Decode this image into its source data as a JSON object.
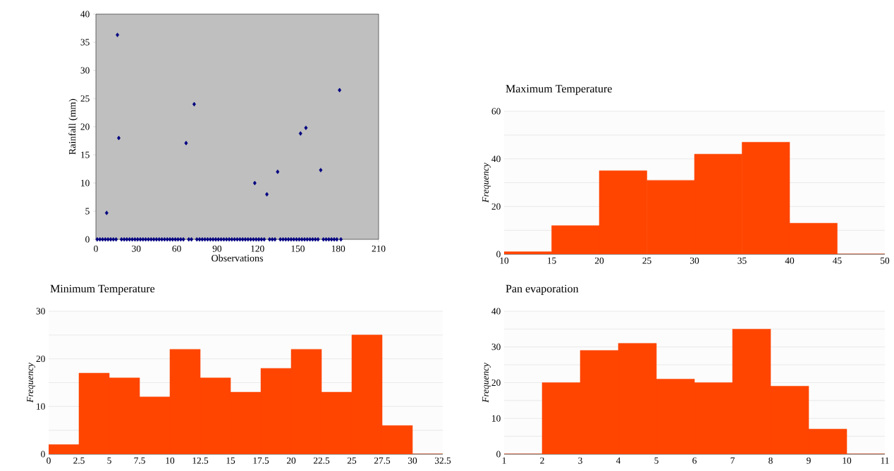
{
  "chart_data": [
    {
      "type": "scatter",
      "xlabel": "Observations",
      "ylabel": "Rainfall (mm)",
      "marker": "diamond",
      "color": "#000080",
      "x": [
        1,
        3,
        5,
        7,
        8,
        9,
        11,
        13,
        15,
        16,
        17,
        19,
        21,
        23,
        25,
        27,
        29,
        31,
        33,
        35,
        37,
        39,
        41,
        43,
        45,
        47,
        49,
        51,
        53,
        55,
        57,
        59,
        61,
        63,
        65,
        67,
        69,
        71,
        73,
        75,
        77,
        79,
        81,
        83,
        85,
        87,
        89,
        91,
        93,
        95,
        97,
        99,
        101,
        103,
        105,
        107,
        109,
        111,
        113,
        115,
        117,
        118,
        119,
        121,
        123,
        125,
        127,
        129,
        131,
        133,
        135,
        137,
        139,
        141,
        143,
        145,
        147,
        149,
        151,
        152,
        153,
        155,
        156,
        157,
        159,
        161,
        163,
        165,
        167,
        169,
        171,
        173,
        175,
        177,
        179,
        181,
        182
      ],
      "values": [
        0,
        0,
        0,
        0,
        4.7,
        0,
        0,
        0,
        0,
        36.3,
        18,
        0,
        0,
        0,
        0,
        0,
        0,
        0,
        0,
        0,
        0,
        0,
        0,
        0,
        0,
        0,
        0,
        0,
        0,
        0,
        0,
        0,
        0,
        0,
        0,
        17.1,
        0,
        0,
        24,
        0,
        0,
        0,
        0,
        0,
        0,
        0,
        0,
        0,
        0,
        0,
        0,
        0,
        0,
        0,
        0,
        0,
        0,
        0,
        0,
        0,
        0,
        10,
        0,
        0,
        0,
        0,
        8,
        0,
        0,
        0,
        12,
        0,
        0,
        0,
        0,
        0,
        0,
        0,
        0,
        18.8,
        0,
        0,
        19.8,
        0,
        0,
        0,
        0,
        0,
        12.3,
        0,
        0,
        0,
        0,
        0,
        0,
        26.5,
        0
      ],
      "xlim": [
        0,
        210
      ],
      "ylim": [
        0,
        40
      ],
      "xticks": [
        0,
        30,
        60,
        90,
        120,
        150,
        180,
        210
      ],
      "yticks": [
        0,
        5,
        10,
        15,
        20,
        25,
        30,
        35,
        40
      ]
    },
    {
      "type": "histogram",
      "title": "Maximum Temperature",
      "ylabel": "Frequency",
      "color": "#ff4500",
      "grid": "y",
      "bins": [
        10,
        15,
        20,
        25,
        30,
        35,
        40,
        45,
        50
      ],
      "values": [
        1,
        12,
        35,
        31,
        42,
        47,
        13,
        0
      ],
      "xlim": [
        10,
        50
      ],
      "ylim": [
        0,
        60
      ],
      "xticks": [
        10,
        15,
        20,
        25,
        30,
        35,
        40,
        45,
        50
      ],
      "yticks": [
        0,
        {
          "value": 10,
          "label": null
        },
        20,
        {
          "value": 30,
          "label": null
        },
        40,
        {
          "value": 50,
          "label": null
        },
        60
      ]
    },
    {
      "type": "histogram",
      "title": "Minimum Temperature",
      "ylabel": "Frequency",
      "color": "#ff4500",
      "grid": "y",
      "bins": [
        0,
        2.5,
        5,
        7.5,
        10,
        12.5,
        15,
        17.5,
        20,
        22.5,
        25,
        27.5,
        30,
        32.5
      ],
      "values": [
        2,
        17,
        16,
        12,
        22,
        16,
        13,
        18,
        22,
        13,
        25,
        6,
        0
      ],
      "xlim": [
        0,
        32.5
      ],
      "ylim": [
        0,
        30
      ],
      "xticks": [
        0,
        2.5,
        5,
        7.5,
        10,
        12.5,
        15,
        17.5,
        20,
        22.5,
        25,
        27.5,
        30,
        32.5
      ],
      "yticks": [
        0,
        {
          "value": 5,
          "label": null
        },
        10,
        {
          "value": 15,
          "label": null
        },
        20,
        {
          "value": 25,
          "label": null
        },
        30
      ]
    },
    {
      "type": "histogram",
      "title": "Pan evaporation",
      "ylabel": "Frequency",
      "color": "#ff4500",
      "grid": "y",
      "bins": [
        1,
        2,
        3,
        4,
        5,
        6,
        7,
        8,
        9,
        10,
        11
      ],
      "values": [
        0,
        20,
        29,
        31,
        21,
        20,
        35,
        19,
        7,
        0
      ],
      "xlim": [
        1,
        11
      ],
      "ylim": [
        0,
        40
      ],
      "xticks": [
        1,
        2,
        3,
        4,
        5,
        6,
        7,
        8,
        9,
        10,
        11
      ],
      "yticks": [
        0,
        {
          "value": 5,
          "label": null
        },
        10,
        {
          "value": 15,
          "label": null
        },
        20,
        {
          "value": 25,
          "label": null
        },
        30,
        {
          "value": 35,
          "label": null
        },
        40
      ]
    }
  ]
}
